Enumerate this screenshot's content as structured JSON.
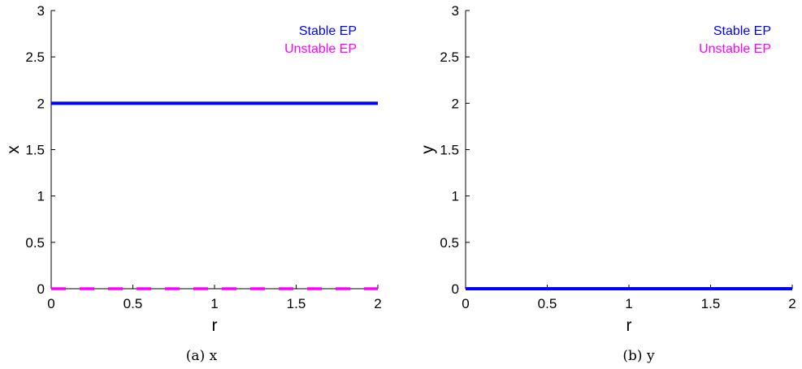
{
  "chart_data": [
    {
      "type": "line",
      "caption": "(a) x",
      "xlabel": "r",
      "ylabel": "x",
      "xlim": [
        0,
        2
      ],
      "ylim": [
        0,
        3
      ],
      "xticks": [
        "0",
        "0.5",
        "1",
        "1.5",
        "2"
      ],
      "yticks": [
        "0",
        "0.5",
        "1",
        "1.5",
        "2",
        "2.5",
        "3"
      ],
      "legend_position": "top-right",
      "series": [
        {
          "name": "Stable EP",
          "color": "#0000ff",
          "style": "solid",
          "x": [
            0,
            2
          ],
          "y": [
            2,
            2
          ]
        },
        {
          "name": "Unstable EP",
          "color": "#ff00ff",
          "style": "dashed",
          "x": [
            0,
            2
          ],
          "y": [
            0,
            0
          ]
        }
      ]
    },
    {
      "type": "line",
      "caption": "(b) y",
      "xlabel": "r",
      "ylabel": "y",
      "xlim": [
        0,
        2
      ],
      "ylim": [
        0,
        3
      ],
      "xticks": [
        "0",
        "0.5",
        "1",
        "1.5",
        "2"
      ],
      "yticks": [
        "0",
        "0.5",
        "1",
        "1.5",
        "2",
        "2.5",
        "3"
      ],
      "legend_position": "top-right",
      "series": [
        {
          "name": "Stable EP",
          "color": "#0000ff",
          "style": "solid",
          "x": [
            0,
            2
          ],
          "y": [
            0,
            0
          ]
        },
        {
          "name": "Unstable EP",
          "color": "#ff00ff",
          "style": "dashed",
          "x": [
            0,
            2
          ],
          "y": [
            0,
            0
          ]
        }
      ]
    }
  ]
}
